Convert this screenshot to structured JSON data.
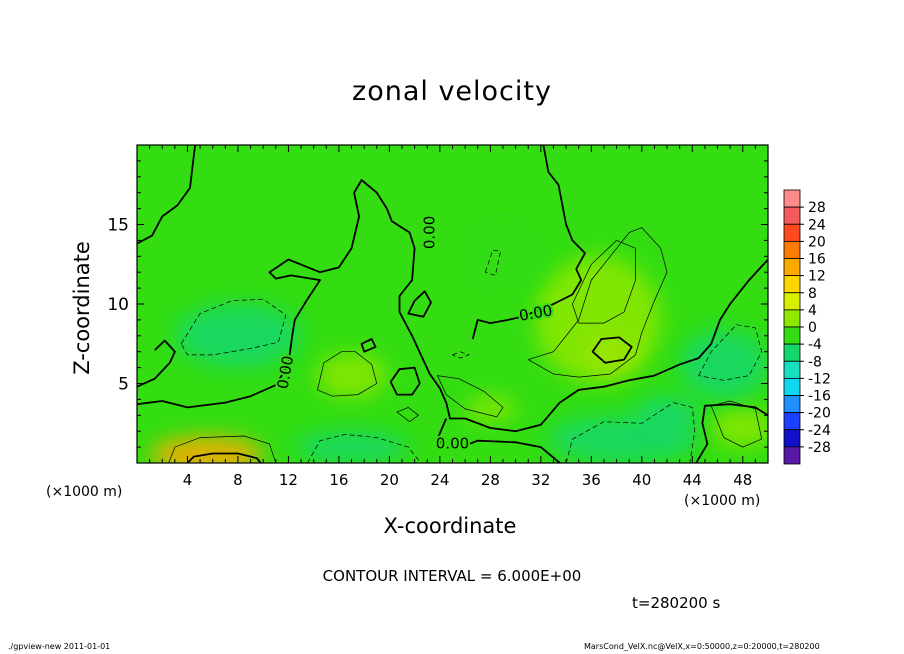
{
  "title": "zonal velocity",
  "footer": {
    "left": "./gpview-new   2011-01-01",
    "right": "MarsCond_VelX.nc@VelX,x=0:50000,z=0:20000,t=280200"
  },
  "contour_interval": "CONTOUR INTERVAL = 6.000E+00",
  "time_label": "t=280200 s",
  "colors": {
    "background_field": "#33dd12",
    "zero_contour": "#000000"
  },
  "chart_data": {
    "type": "heatmap",
    "title": "zonal velocity",
    "xlabel": "X-coordinate",
    "ylabel": "Z-coordinate",
    "x_unit_labels": [
      "(×1000 m)",
      "(×1000 m)"
    ],
    "xlim": [
      0,
      50
    ],
    "ylim": [
      0,
      20
    ],
    "x_ticks": [
      4,
      8,
      12,
      16,
      20,
      24,
      28,
      32,
      36,
      40,
      44,
      48
    ],
    "y_ticks": [
      5,
      10,
      15
    ],
    "colorbar_labels": [
      "28",
      "24",
      "20",
      "16",
      "12",
      "8",
      "4",
      "0",
      "-4",
      "-8",
      "-12",
      "-16",
      "-20",
      "-24",
      "-28"
    ],
    "colorbar_levels": [
      30,
      28,
      24,
      20,
      16,
      12,
      8,
      4,
      0,
      -4,
      -8,
      -12,
      -16,
      -20,
      -24,
      -28,
      -30
    ],
    "colorbar_colors": [
      "#ff8a8a",
      "#f55b5b",
      "#ff4a20",
      "#ff7a00",
      "#ffaa00",
      "#ffd700",
      "#d8f000",
      "#8fe800",
      "#33dd12",
      "#14d86c",
      "#16e0c0",
      "#10d8f0",
      "#1f8fff",
      "#1c40ff",
      "#1010c8",
      "#5a18a8"
    ],
    "contour_labels": [
      {
        "text": "0.00",
        "x": 23.2,
        "y": 14.5,
        "rotate": -90
      },
      {
        "text": "0.00",
        "x": 31.6,
        "y": 9.4,
        "rotate": -10
      },
      {
        "text": "0.00",
        "x": 11.8,
        "y": 5.7,
        "rotate": -80
      },
      {
        "text": "0.00",
        "x": 25.0,
        "y": 1.2,
        "rotate": 0
      }
    ],
    "anomalies": [
      {
        "x": 5.5,
        "y": 0.5,
        "rx": 4.5,
        "ry": 1.2,
        "value": 14
      },
      {
        "x": 37.5,
        "y": 7.0,
        "rx": 2.0,
        "ry": 0.9,
        "value": 9
      },
      {
        "x": 36.5,
        "y": 9.0,
        "rx": 5.0,
        "ry": 4.0,
        "value": 3
      },
      {
        "x": 17.0,
        "y": 5.5,
        "rx": 2.8,
        "ry": 1.4,
        "value": 3
      },
      {
        "x": 28.0,
        "y": 3.4,
        "rx": 2.0,
        "ry": 0.8,
        "value": 4
      },
      {
        "x": 48.0,
        "y": 2.2,
        "rx": 2.5,
        "ry": 1.2,
        "value": 4
      },
      {
        "x": 8.0,
        "y": 8.0,
        "rx": 5.0,
        "ry": 2.0,
        "value": -6
      },
      {
        "x": 29.0,
        "y": 13.0,
        "rx": 3.5,
        "ry": 2.5,
        "value": -3
      },
      {
        "x": 38.5,
        "y": 1.5,
        "rx": 6.0,
        "ry": 1.5,
        "value": -6
      },
      {
        "x": 46.5,
        "y": 6.2,
        "rx": 3.5,
        "ry": 2.2,
        "value": -5
      },
      {
        "x": 17.0,
        "y": 1.0,
        "rx": 4.5,
        "ry": 1.0,
        "value": -4
      },
      {
        "x": 42.0,
        "y": 3.0,
        "rx": 2.5,
        "ry": 1.3,
        "value": -4
      }
    ],
    "zero_contours": [
      {
        "closed": false,
        "points": [
          [
            0,
            13.8
          ],
          [
            1.2,
            14.3
          ],
          [
            2.0,
            15.5
          ],
          [
            3.2,
            16.2
          ],
          [
            4.2,
            17.3
          ],
          [
            4.6,
            20.0
          ]
        ]
      },
      {
        "closed": false,
        "points": [
          [
            0,
            4.8
          ],
          [
            1.4,
            5.3
          ],
          [
            2.6,
            6.3
          ],
          [
            3.0,
            7.0
          ],
          [
            2.2,
            7.7
          ],
          [
            1.4,
            7.1
          ]
        ]
      },
      {
        "closed": false,
        "points": [
          [
            0,
            3.7
          ],
          [
            2.0,
            3.9
          ],
          [
            4.0,
            3.5
          ],
          [
            7.0,
            3.8
          ],
          [
            9.0,
            4.2
          ],
          [
            11.0,
            4.9
          ],
          [
            12.0,
            6.2
          ],
          [
            12.3,
            8.0
          ],
          [
            12.5,
            9.0
          ],
          [
            13.5,
            10.3
          ],
          [
            14.5,
            11.5
          ],
          [
            12.2,
            11.8
          ],
          [
            11.0,
            11.6
          ],
          [
            10.5,
            12.0
          ],
          [
            12.0,
            12.8
          ],
          [
            14.5,
            12.0
          ],
          [
            16.0,
            12.3
          ],
          [
            17.0,
            13.5
          ],
          [
            17.6,
            15.5
          ],
          [
            17.2,
            17.0
          ],
          [
            17.8,
            17.8
          ],
          [
            19.0,
            17.0
          ],
          [
            19.8,
            16.0
          ],
          [
            20.2,
            15.2
          ],
          [
            21.6,
            14.5
          ],
          [
            22.0,
            13.5
          ],
          [
            21.8,
            11.5
          ],
          [
            20.8,
            10.5
          ],
          [
            20.8,
            9.5
          ],
          [
            21.8,
            8.0
          ],
          [
            22.5,
            6.8
          ],
          [
            23.2,
            5.6
          ],
          [
            24.0,
            4.7
          ],
          [
            24.5,
            3.8
          ],
          [
            24.8,
            2.8
          ],
          [
            26.0,
            2.8
          ],
          [
            28.0,
            2.2
          ],
          [
            30.0,
            2.0
          ],
          [
            32.0,
            2.4
          ],
          [
            33.5,
            3.8
          ],
          [
            35.0,
            4.6
          ],
          [
            37.0,
            4.8
          ],
          [
            39.0,
            5.2
          ],
          [
            41.0,
            5.5
          ],
          [
            43.0,
            6.2
          ],
          [
            44.5,
            6.6
          ],
          [
            45.5,
            7.5
          ],
          [
            46.2,
            9.0
          ],
          [
            47.0,
            10.0
          ],
          [
            48.5,
            11.5
          ],
          [
            50.0,
            12.8
          ]
        ]
      },
      {
        "closed": false,
        "points": [
          [
            26.6,
            7.8
          ],
          [
            27.0,
            9.0
          ],
          [
            28.0,
            8.8
          ],
          [
            29.4,
            9.0
          ],
          [
            30.5,
            9.2
          ],
          [
            31.8,
            9.6
          ],
          [
            33.0,
            10.0
          ],
          [
            34.5,
            10.6
          ],
          [
            35.2,
            11.5
          ],
          [
            34.8,
            12.2
          ],
          [
            35.5,
            13.2
          ],
          [
            34.5,
            14.0
          ],
          [
            34.0,
            15.0
          ],
          [
            33.4,
            17.5
          ],
          [
            32.6,
            18.3
          ],
          [
            32.2,
            20.0
          ]
        ]
      },
      {
        "closed": false,
        "points": [
          [
            24.5,
            2.8
          ],
          [
            23.8,
            1.5
          ],
          [
            24.5,
            1.0
          ],
          [
            26.0,
            1.1
          ],
          [
            27.0,
            1.4
          ],
          [
            30.0,
            1.3
          ],
          [
            32.0,
            1.0
          ],
          [
            33.5,
            0.0
          ]
        ]
      },
      {
        "closed": false,
        "points": [
          [
            44.3,
            0.0
          ],
          [
            45.2,
            1.2
          ],
          [
            44.8,
            2.5
          ],
          [
            45.0,
            3.6
          ],
          [
            47.0,
            3.7
          ],
          [
            49.0,
            3.5
          ],
          [
            50.0,
            3.0
          ]
        ]
      },
      {
        "closed": true,
        "points": [
          [
            36.1,
            7.0
          ],
          [
            36.8,
            7.8
          ],
          [
            38.2,
            7.9
          ],
          [
            39.2,
            7.3
          ],
          [
            38.6,
            6.5
          ],
          [
            37.1,
            6.3
          ]
        ]
      },
      {
        "closed": true,
        "points": [
          [
            17.8,
            7.5
          ],
          [
            18.6,
            7.8
          ],
          [
            18.9,
            7.3
          ],
          [
            18.0,
            7.0
          ]
        ]
      },
      {
        "closed": true,
        "points": [
          [
            20.1,
            5.1
          ],
          [
            20.8,
            5.9
          ],
          [
            22.0,
            6.0
          ],
          [
            22.4,
            5.0
          ],
          [
            21.8,
            4.3
          ],
          [
            20.6,
            4.3
          ]
        ]
      },
      {
        "closed": true,
        "points": [
          [
            21.5,
            9.4
          ],
          [
            22.0,
            10.2
          ],
          [
            22.8,
            10.8
          ],
          [
            23.3,
            10.1
          ],
          [
            22.7,
            9.2
          ]
        ]
      },
      {
        "closed": false,
        "points": [
          [
            4.0,
            0.0
          ],
          [
            4.5,
            0.4
          ],
          [
            6.0,
            0.6
          ],
          [
            8.0,
            0.6
          ],
          [
            9.5,
            0.3
          ],
          [
            9.8,
            0.0
          ]
        ]
      }
    ],
    "thin_contours": [
      {
        "closed": false,
        "dashed": false,
        "points": [
          [
            2.5,
            0.0
          ],
          [
            3.0,
            1.0
          ],
          [
            5.0,
            1.6
          ],
          [
            8.5,
            1.7
          ],
          [
            10.5,
            1.2
          ],
          [
            11.0,
            0.0
          ]
        ]
      },
      {
        "closed": true,
        "dashed": false,
        "points": [
          [
            14.3,
            4.6
          ],
          [
            14.8,
            6.3
          ],
          [
            16.2,
            7.0
          ],
          [
            17.3,
            7.0
          ],
          [
            18.6,
            6.2
          ],
          [
            19.0,
            5.0
          ],
          [
            17.5,
            4.3
          ],
          [
            15.5,
            4.2
          ]
        ]
      },
      {
        "closed": true,
        "dashed": false,
        "points": [
          [
            23.8,
            5.5
          ],
          [
            25.5,
            5.3
          ],
          [
            27.5,
            4.5
          ],
          [
            29.0,
            3.5
          ],
          [
            28.5,
            2.9
          ],
          [
            26.0,
            3.4
          ],
          [
            24.5,
            4.3
          ]
        ]
      },
      {
        "closed": false,
        "dashed": false,
        "points": [
          [
            31.0,
            6.5
          ],
          [
            33.0,
            7.0
          ],
          [
            35.0,
            9.0
          ],
          [
            36.0,
            11.5
          ],
          [
            37.5,
            13.0
          ],
          [
            39.0,
            14.5
          ],
          [
            40.0,
            14.8
          ],
          [
            41.5,
            13.5
          ],
          [
            42.0,
            12.0
          ],
          [
            41.0,
            10.2
          ],
          [
            40.0,
            8.2
          ],
          [
            39.5,
            6.8
          ],
          [
            37.5,
            5.6
          ],
          [
            35.0,
            5.4
          ],
          [
            33.0,
            5.6
          ],
          [
            31.0,
            6.5
          ]
        ]
      },
      {
        "closed": true,
        "dashed": false,
        "points": [
          [
            34.5,
            10.0
          ],
          [
            36.0,
            12.5
          ],
          [
            38.0,
            14.0
          ],
          [
            39.5,
            13.5
          ],
          [
            39.5,
            11.5
          ],
          [
            38.6,
            9.5
          ],
          [
            37.0,
            8.8
          ],
          [
            35.0,
            8.8
          ]
        ]
      },
      {
        "closed": true,
        "dashed": false,
        "points": [
          [
            45.5,
            3.6
          ],
          [
            47.0,
            3.9
          ],
          [
            49.0,
            3.4
          ],
          [
            49.5,
            1.5
          ],
          [
            48.0,
            1.0
          ],
          [
            46.5,
            1.6
          ]
        ]
      },
      {
        "closed": true,
        "dashed": false,
        "points": [
          [
            20.6,
            3.2
          ],
          [
            21.5,
            3.5
          ],
          [
            22.3,
            3.0
          ],
          [
            21.6,
            2.6
          ]
        ]
      },
      {
        "closed": true,
        "dashed": true,
        "points": [
          [
            3.5,
            7.5
          ],
          [
            5.0,
            9.4
          ],
          [
            7.5,
            10.2
          ],
          [
            10.0,
            10.3
          ],
          [
            11.8,
            9.3
          ],
          [
            11.2,
            7.6
          ],
          [
            9.0,
            7.2
          ],
          [
            6.0,
            6.8
          ],
          [
            4.0,
            6.8
          ]
        ]
      },
      {
        "closed": true,
        "dashed": true,
        "points": [
          [
            27.6,
            12.0
          ],
          [
            28.2,
            13.4
          ],
          [
            28.8,
            13.3
          ],
          [
            28.4,
            11.8
          ]
        ]
      },
      {
        "closed": false,
        "dashed": true,
        "points": [
          [
            13.5,
            0.0
          ],
          [
            14.5,
            1.4
          ],
          [
            16.5,
            1.8
          ],
          [
            19.0,
            1.6
          ],
          [
            21.5,
            1.0
          ],
          [
            22.5,
            0.0
          ]
        ]
      },
      {
        "closed": false,
        "dashed": true,
        "points": [
          [
            34.0,
            0.0
          ],
          [
            34.5,
            1.5
          ],
          [
            37.0,
            2.6
          ],
          [
            40.0,
            2.5
          ],
          [
            42.5,
            3.8
          ],
          [
            44.0,
            3.5
          ],
          [
            44.2,
            2.0
          ],
          [
            43.8,
            0.0
          ]
        ]
      },
      {
        "closed": false,
        "dashed": true,
        "points": [
          [
            44.5,
            5.5
          ],
          [
            45.5,
            7.0
          ],
          [
            47.5,
            8.7
          ],
          [
            49.0,
            8.5
          ],
          [
            49.5,
            7.0
          ],
          [
            48.5,
            5.5
          ],
          [
            46.5,
            5.2
          ],
          [
            44.5,
            5.5
          ]
        ]
      },
      {
        "closed": true,
        "dashed": true,
        "points": [
          [
            25.0,
            6.8
          ],
          [
            25.6,
            7.0
          ],
          [
            26.3,
            6.8
          ],
          [
            25.6,
            6.6
          ]
        ]
      }
    ]
  }
}
